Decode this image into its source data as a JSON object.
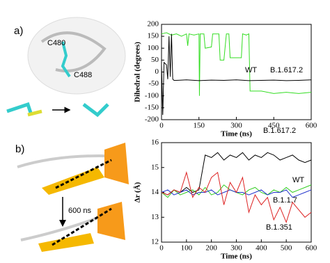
{
  "panels": {
    "a": "a)",
    "b": "b)",
    "c480": "C480",
    "c488": "C488",
    "time": "600 ns"
  },
  "chart_data": [
    {
      "type": "line",
      "x_label": "Time (ns)",
      "y_label": "Dihedral (degrees)",
      "xlim": [
        0,
        600
      ],
      "xticks": [
        0,
        150,
        300,
        450,
        600
      ],
      "ylim": [
        -200,
        200
      ],
      "yticks": [
        -200,
        -150,
        -100,
        -50,
        0,
        50,
        100,
        150,
        200
      ],
      "series": [
        {
          "name": "WT",
          "color": "#33dd22",
          "x": [
            0,
            20,
            40,
            60,
            80,
            100,
            105,
            110,
            130,
            150,
            152,
            155,
            170,
            175,
            200,
            205,
            230,
            235,
            250,
            260,
            270,
            275,
            320,
            325,
            340,
            350,
            355,
            400,
            450,
            500,
            550,
            600
          ],
          "values": [
            160,
            165,
            155,
            160,
            150,
            160,
            110,
            160,
            155,
            160,
            -100,
            160,
            160,
            100,
            105,
            160,
            160,
            50,
            50,
            160,
            160,
            60,
            60,
            160,
            155,
            160,
            -80,
            -80,
            -90,
            -85,
            -90,
            -85
          ]
        },
        {
          "name": "B.1.617.2",
          "color": "#000000",
          "x": [
            0,
            5,
            10,
            15,
            20,
            25,
            30,
            35,
            40,
            45,
            50,
            60,
            100,
            150,
            200,
            250,
            300,
            350,
            400,
            450,
            500,
            550,
            600
          ],
          "values": [
            30,
            -180,
            40,
            35,
            30,
            -30,
            150,
            -20,
            160,
            -30,
            -35,
            -35,
            -33,
            -36,
            -34,
            -35,
            -33,
            -36,
            -35,
            -34,
            -36,
            -35,
            -33
          ]
        }
      ]
    },
    {
      "type": "line",
      "x_label": "Time (ns)",
      "y_label": "Δr (Å)",
      "xlim": [
        0,
        600
      ],
      "xticks": [
        0,
        100,
        200,
        300,
        400,
        500,
        600
      ],
      "ylim": [
        12,
        16
      ],
      "yticks": [
        12,
        13,
        14,
        15,
        16
      ],
      "x": [
        0,
        25,
        50,
        75,
        100,
        125,
        150,
        175,
        200,
        225,
        250,
        275,
        300,
        325,
        350,
        375,
        400,
        425,
        450,
        475,
        500,
        525,
        550,
        575,
        600
      ],
      "series": [
        {
          "name": "B.1.617.2",
          "color": "#000000",
          "values": [
            14.0,
            13.9,
            14.1,
            14.0,
            14.2,
            14.0,
            14.1,
            15.5,
            15.4,
            15.6,
            15.3,
            15.5,
            15.4,
            15.6,
            15.3,
            15.5,
            15.4,
            15.6,
            15.5,
            15.3,
            15.4,
            15.5,
            15.3,
            15.2,
            15.3
          ]
        },
        {
          "name": "WT",
          "color": "#33cc22",
          "values": [
            14.0,
            13.8,
            14.1,
            13.9,
            14.0,
            14.1,
            13.9,
            14.2,
            13.9,
            14.0,
            14.3,
            14.1,
            14.0,
            13.9,
            14.1,
            14.2,
            14.0,
            13.9,
            14.1,
            14.0,
            14.2,
            14.0,
            14.1,
            14.2,
            14.3
          ]
        },
        {
          "name": "B.1.1.7",
          "color": "#2233cc",
          "values": [
            14.0,
            14.1,
            13.9,
            14.0,
            14.1,
            13.9,
            14.0,
            14.0,
            14.1,
            13.9,
            14.0,
            14.1,
            14.0,
            14.0,
            13.9,
            14.0,
            14.1,
            13.9,
            14.0,
            14.0,
            14.1,
            13.8,
            13.9,
            14.0,
            14.1
          ]
        },
        {
          "name": "B.1.351",
          "color": "#dd2222",
          "values": [
            14.0,
            13.9,
            14.1,
            14.0,
            14.8,
            13.8,
            14.2,
            14.0,
            14.6,
            14.8,
            13.5,
            14.4,
            14.0,
            14.6,
            13.2,
            13.9,
            13.5,
            13.8,
            12.9,
            13.4,
            12.8,
            13.6,
            13.3,
            13.0,
            13.2
          ]
        }
      ]
    }
  ]
}
